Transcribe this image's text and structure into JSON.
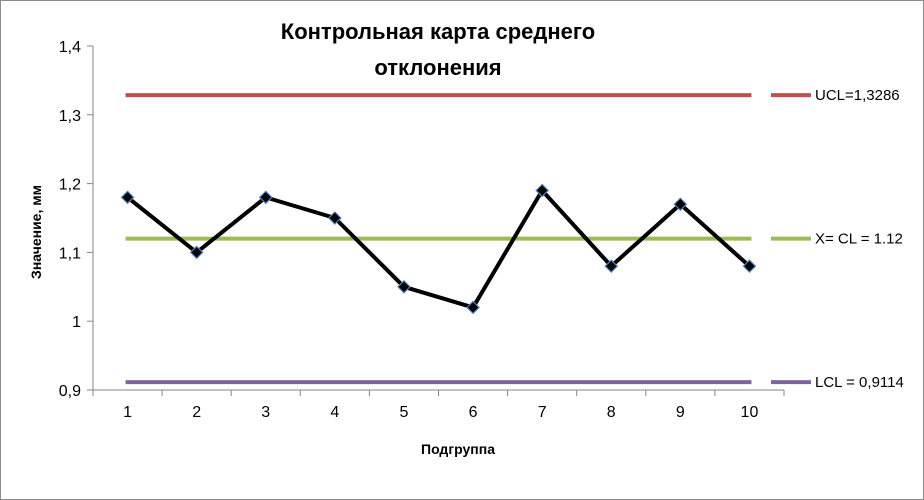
{
  "chart_data": {
    "type": "line",
    "title_lines": [
      "Контрольная карта среднего",
      "отклонения"
    ],
    "xlabel": "Подгруппа",
    "ylabel": "Значение, мм",
    "categories": [
      "1",
      "2",
      "3",
      "4",
      "5",
      "6",
      "7",
      "8",
      "9",
      "10"
    ],
    "ylim": [
      0.9,
      1.4
    ],
    "y_ticks": [
      "0,9",
      "1",
      "1,1",
      "1,2",
      "1,3",
      "1,4"
    ],
    "y_tick_values": [
      0.9,
      1.0,
      1.1,
      1.2,
      1.3,
      1.4
    ],
    "grid": false,
    "series": [
      {
        "values": [
          1.18,
          1.1,
          1.18,
          1.15,
          1.05,
          1.02,
          1.19,
          1.08,
          1.17,
          1.08
        ],
        "color": "#000000",
        "marker_color": "#17375E",
        "marker": "diamond"
      }
    ],
    "reference_lines": [
      {
        "label": "UCL=1,3286",
        "value": 1.3286,
        "color": "#C0504D"
      },
      {
        "label": "X= CL = 1.12",
        "value": 1.12,
        "color": "#9BBB59"
      },
      {
        "label": "LCL = 0,9114",
        "value": 0.9114,
        "color": "#8064A2"
      }
    ],
    "legend_position": "right"
  }
}
